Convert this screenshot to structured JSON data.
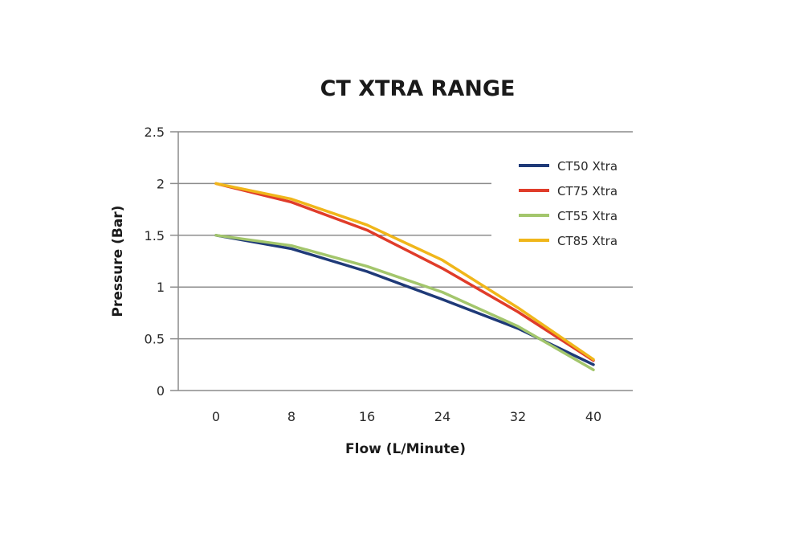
{
  "chart_data": {
    "type": "line",
    "title": "CT XTRA RANGE",
    "xlabel": "Flow (L/Minute)",
    "ylabel": "Pressure (Bar)",
    "x": [
      0,
      8,
      16,
      24,
      32,
      40
    ],
    "x_tick_labels": [
      "0",
      "8",
      "16",
      "24",
      "32",
      "40"
    ],
    "y_ticks": [
      0,
      0.5,
      1,
      1.5,
      2,
      2.5
    ],
    "y_tick_labels": [
      "0",
      "0.5",
      "1",
      "1.5",
      "2",
      "2.5"
    ],
    "ylim": [
      0,
      2.5
    ],
    "grid": true,
    "legend_position": "top-right",
    "series": [
      {
        "name": "CT50 Xtra",
        "color": "#1f3a78",
        "values": [
          1.5,
          1.37,
          1.15,
          0.88,
          0.6,
          0.25
        ]
      },
      {
        "name": "CT75 Xtra",
        "color": "#e03c2a",
        "values": [
          2.0,
          1.82,
          1.55,
          1.18,
          0.76,
          0.29
        ]
      },
      {
        "name": "CT55 Xtra",
        "color": "#a3c66c",
        "values": [
          1.5,
          1.4,
          1.2,
          0.95,
          0.62,
          0.2
        ]
      },
      {
        "name": "CT85 Xtra",
        "color": "#f0b61a",
        "values": [
          2.0,
          1.85,
          1.6,
          1.26,
          0.8,
          0.3
        ]
      }
    ]
  }
}
